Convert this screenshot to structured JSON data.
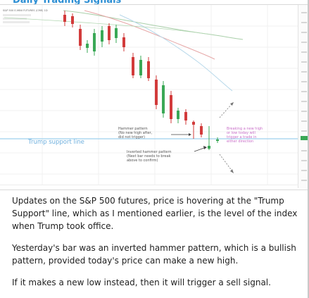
{
  "header": {
    "title": "Daily Trading Signals"
  },
  "chart": {
    "symbol_line": "S&P 500 E-MINI FUTURES (CME) 1D",
    "legend_lines": [
      "",
      "",
      ""
    ],
    "support_label": "Trump support line",
    "annotation_hammer": "Hammer pattern\n(No new high after,\ndid not trigger)",
    "annotation_inverted": "Inverted hammer pattern\n(Next bar needs to break\nabove to confirm)",
    "annotation_breaking": "Breaking a new high\nor low today will\ntrigger a trade in\neither direction",
    "colors": {
      "up_candle": "#3aa856",
      "down_candle": "#d23b3b",
      "support_line": "#9ed0ee",
      "ma_red": "#e6a7a7",
      "ma_green": "#a9cfa9",
      "ma_blue": "#b7d8ea",
      "annotation_pink": "#c86fc8",
      "title_blue": "#2d8fd4"
    }
  },
  "post": {
    "paragraphs": [
      "Updates on the S&P 500 futures, price is hovering at the \"Trump Support\" line, which as I mentioned earlier, is the level of the index when Trump took office.",
      "Yesterday's bar was an inverted hammer pattern, which is a bullish pattern, provided today's price can make a new high.",
      "If it makes a new low instead, then it will trigger a sell signal."
    ]
  }
}
